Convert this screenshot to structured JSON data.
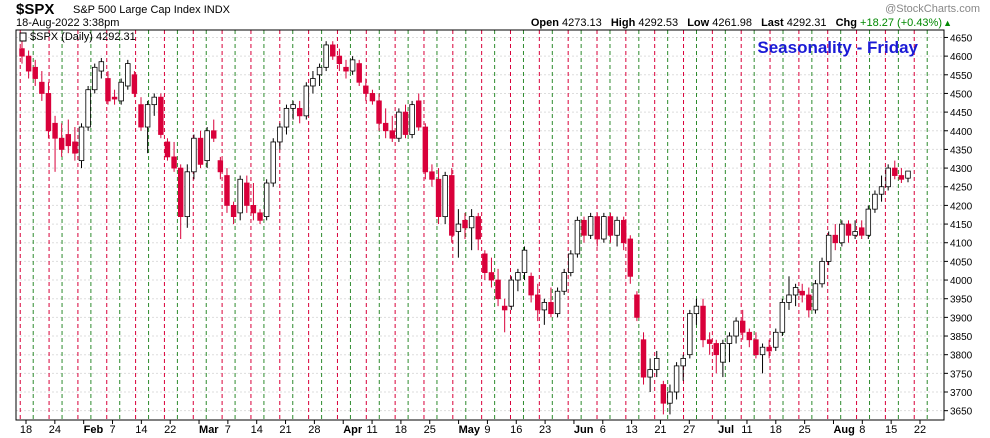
{
  "header": {
    "symbol": "$SPX",
    "name": "S&P 500 Large Cap Index",
    "exchange": "INDX",
    "datetime": "18-Aug-2022 3:38pm",
    "open_label": "Open",
    "open": "4273.13",
    "high_label": "High",
    "high": "4292.53",
    "low_label": "Low",
    "low": "4261.98",
    "last_label": "Last",
    "last": "4292.31",
    "chg_label": "Chg",
    "chg": "+18.27 (+0.43%)",
    "watermark": "@StockCharts.com",
    "up_arrow_icon": "triangle-up-icon"
  },
  "chart_data": {
    "type": "candlestick",
    "series_label": "$SPX (Daily) 4292.31",
    "annotation": "Seasonality - Friday",
    "annotation_color": "#1a1ad6",
    "ylim": [
      3625,
      4670
    ],
    "y_ticks": [
      3650,
      3700,
      3750,
      3800,
      3850,
      3900,
      3950,
      4000,
      4050,
      4100,
      4150,
      4200,
      4250,
      4300,
      4350,
      4400,
      4450,
      4500,
      4550,
      4600,
      4650
    ],
    "x_tick_labels": [
      "18",
      "24",
      "Feb",
      "7",
      "14",
      "22",
      "Mar",
      "7",
      "14",
      "21",
      "28",
      "Apr",
      "11",
      "18",
      "25",
      "May",
      "9",
      "16",
      "23",
      "Jun",
      "6",
      "13",
      "21",
      "27",
      "Jul",
      "11",
      "18",
      "25",
      "Aug",
      "8",
      "15",
      "22"
    ],
    "month_labels": [
      "Feb",
      "Mar",
      "Apr",
      "May",
      "Jun",
      "Jul",
      "Aug"
    ],
    "up_color": "#ffffff",
    "down_color": "#d9003a",
    "weekly_line_colors": {
      "red": "#d9003a",
      "green": "#2e8b2e"
    },
    "grid": true,
    "candles": [
      {
        "o": 4620,
        "h": 4650,
        "l": 4580,
        "c": 4600
      },
      {
        "o": 4600,
        "h": 4615,
        "l": 4540,
        "c": 4560
      },
      {
        "o": 4570,
        "h": 4590,
        "l": 4520,
        "c": 4540
      },
      {
        "o": 4530,
        "h": 4560,
        "l": 4480,
        "c": 4500
      },
      {
        "o": 4500,
        "h": 4530,
        "l": 4380,
        "c": 4400
      },
      {
        "o": 4420,
        "h": 4440,
        "l": 4290,
        "c": 4380
      },
      {
        "o": 4380,
        "h": 4420,
        "l": 4330,
        "c": 4350
      },
      {
        "o": 4390,
        "h": 4430,
        "l": 4340,
        "c": 4360
      },
      {
        "o": 4370,
        "h": 4410,
        "l": 4320,
        "c": 4340
      },
      {
        "o": 4320,
        "h": 4420,
        "l": 4300,
        "c": 4410
      },
      {
        "o": 4410,
        "h": 4520,
        "l": 4400,
        "c": 4510
      },
      {
        "o": 4510,
        "h": 4580,
        "l": 4500,
        "c": 4570
      },
      {
        "o": 4560,
        "h": 4595,
        "l": 4540,
        "c": 4585
      },
      {
        "o": 4540,
        "h": 4560,
        "l": 4470,
        "c": 4480
      },
      {
        "o": 4490,
        "h": 4510,
        "l": 4470,
        "c": 4485
      },
      {
        "o": 4480,
        "h": 4540,
        "l": 4470,
        "c": 4530
      },
      {
        "o": 4520,
        "h": 4590,
        "l": 4510,
        "c": 4580
      },
      {
        "o": 4550,
        "h": 4560,
        "l": 4490,
        "c": 4500
      },
      {
        "o": 4470,
        "h": 4490,
        "l": 4400,
        "c": 4410
      },
      {
        "o": 4410,
        "h": 4480,
        "l": 4340,
        "c": 4470
      },
      {
        "o": 4470,
        "h": 4500,
        "l": 4440,
        "c": 4490
      },
      {
        "o": 4490,
        "h": 4500,
        "l": 4380,
        "c": 4390
      },
      {
        "o": 4370,
        "h": 4380,
        "l": 4320,
        "c": 4330
      },
      {
        "o": 4330,
        "h": 4370,
        "l": 4290,
        "c": 4300
      },
      {
        "o": 4300,
        "h": 4310,
        "l": 4110,
        "c": 4170
      },
      {
        "o": 4170,
        "h": 4310,
        "l": 4140,
        "c": 4290
      },
      {
        "o": 4290,
        "h": 4390,
        "l": 4270,
        "c": 4380
      },
      {
        "o": 4380,
        "h": 4400,
        "l": 4300,
        "c": 4310
      },
      {
        "o": 4320,
        "h": 4410,
        "l": 4300,
        "c": 4400
      },
      {
        "o": 4400,
        "h": 4430,
        "l": 4370,
        "c": 4380
      },
      {
        "o": 4320,
        "h": 4330,
        "l": 4270,
        "c": 4290
      },
      {
        "o": 4280,
        "h": 4300,
        "l": 4180,
        "c": 4200
      },
      {
        "o": 4200,
        "h": 4210,
        "l": 4150,
        "c": 4170
      },
      {
        "o": 4180,
        "h": 4280,
        "l": 4160,
        "c": 4270
      },
      {
        "o": 4260,
        "h": 4280,
        "l": 4180,
        "c": 4200
      },
      {
        "o": 4200,
        "h": 4260,
        "l": 4160,
        "c": 4180
      },
      {
        "o": 4180,
        "h": 4190,
        "l": 4150,
        "c": 4160
      },
      {
        "o": 4170,
        "h": 4270,
        "l": 4160,
        "c": 4260
      },
      {
        "o": 4260,
        "h": 4380,
        "l": 4250,
        "c": 4370
      },
      {
        "o": 4370,
        "h": 4420,
        "l": 4350,
        "c": 4410
      },
      {
        "o": 4410,
        "h": 4470,
        "l": 4390,
        "c": 4460
      },
      {
        "o": 4460,
        "h": 4480,
        "l": 4430,
        "c": 4470
      },
      {
        "o": 4460,
        "h": 4480,
        "l": 4420,
        "c": 4440
      },
      {
        "o": 4440,
        "h": 4530,
        "l": 4430,
        "c": 4520
      },
      {
        "o": 4520,
        "h": 4560,
        "l": 4500,
        "c": 4540
      },
      {
        "o": 4550,
        "h": 4580,
        "l": 4520,
        "c": 4570
      },
      {
        "o": 4570,
        "h": 4640,
        "l": 4560,
        "c": 4630
      },
      {
        "o": 4630,
        "h": 4640,
        "l": 4590,
        "c": 4600
      },
      {
        "o": 4600,
        "h": 4620,
        "l": 4560,
        "c": 4580
      },
      {
        "o": 4570,
        "h": 4590,
        "l": 4540,
        "c": 4560
      },
      {
        "o": 4560,
        "h": 4600,
        "l": 4550,
        "c": 4590
      },
      {
        "o": 4580,
        "h": 4590,
        "l": 4520,
        "c": 4530
      },
      {
        "o": 4520,
        "h": 4540,
        "l": 4480,
        "c": 4500
      },
      {
        "o": 4500,
        "h": 4510,
        "l": 4470,
        "c": 4480
      },
      {
        "o": 4480,
        "h": 4500,
        "l": 4400,
        "c": 4420
      },
      {
        "o": 4420,
        "h": 4460,
        "l": 4380,
        "c": 4400
      },
      {
        "o": 4400,
        "h": 4440,
        "l": 4370,
        "c": 4380
      },
      {
        "o": 4380,
        "h": 4460,
        "l": 4370,
        "c": 4450
      },
      {
        "o": 4450,
        "h": 4470,
        "l": 4380,
        "c": 4390
      },
      {
        "o": 4390,
        "h": 4480,
        "l": 4380,
        "c": 4470
      },
      {
        "o": 4480,
        "h": 4500,
        "l": 4400,
        "c": 4410
      },
      {
        "o": 4410,
        "h": 4420,
        "l": 4270,
        "c": 4290
      },
      {
        "o": 4290,
        "h": 4310,
        "l": 4250,
        "c": 4270
      },
      {
        "o": 4270,
        "h": 4300,
        "l": 4150,
        "c": 4170
      },
      {
        "o": 4170,
        "h": 4290,
        "l": 4150,
        "c": 4280
      },
      {
        "o": 4280,
        "h": 4300,
        "l": 4100,
        "c": 4120
      },
      {
        "o": 4130,
        "h": 4190,
        "l": 4060,
        "c": 4150
      },
      {
        "o": 4160,
        "h": 4180,
        "l": 4110,
        "c": 4140
      },
      {
        "o": 4140,
        "h": 4190,
        "l": 4080,
        "c": 4170
      },
      {
        "o": 4170,
        "h": 4180,
        "l": 4080,
        "c": 4110
      },
      {
        "o": 4070,
        "h": 4080,
        "l": 4000,
        "c": 4020
      },
      {
        "o": 4020,
        "h": 4060,
        "l": 3980,
        "c": 4000
      },
      {
        "o": 4000,
        "h": 4030,
        "l": 3930,
        "c": 3950
      },
      {
        "o": 3930,
        "h": 3950,
        "l": 3860,
        "c": 3920
      },
      {
        "o": 3930,
        "h": 4010,
        "l": 3920,
        "c": 4000
      },
      {
        "o": 4000,
        "h": 4030,
        "l": 3970,
        "c": 4020
      },
      {
        "o": 4020,
        "h": 4090,
        "l": 4000,
        "c": 4080
      },
      {
        "o": 4010,
        "h": 4020,
        "l": 3940,
        "c": 3960
      },
      {
        "o": 3960,
        "h": 3990,
        "l": 3890,
        "c": 3920
      },
      {
        "o": 3920,
        "h": 3950,
        "l": 3880,
        "c": 3940
      },
      {
        "o": 3940,
        "h": 3980,
        "l": 3900,
        "c": 3910
      },
      {
        "o": 3910,
        "h": 3980,
        "l": 3900,
        "c": 3970
      },
      {
        "o": 3970,
        "h": 4030,
        "l": 3960,
        "c": 4020
      },
      {
        "o": 4020,
        "h": 4080,
        "l": 4010,
        "c": 4070
      },
      {
        "o": 4070,
        "h": 4170,
        "l": 4060,
        "c": 4160
      },
      {
        "o": 4160,
        "h": 4170,
        "l": 4100,
        "c": 4120
      },
      {
        "o": 4120,
        "h": 4180,
        "l": 4110,
        "c": 4170
      },
      {
        "o": 4170,
        "h": 4180,
        "l": 4090,
        "c": 4110
      },
      {
        "o": 4110,
        "h": 4180,
        "l": 4100,
        "c": 4170
      },
      {
        "o": 4170,
        "h": 4180,
        "l": 4100,
        "c": 4120
      },
      {
        "o": 4120,
        "h": 4170,
        "l": 4090,
        "c": 4160
      },
      {
        "o": 4160,
        "h": 4170,
        "l": 4080,
        "c": 4100
      },
      {
        "o": 4110,
        "h": 4120,
        "l": 3990,
        "c": 4010
      },
      {
        "o": 3960,
        "h": 3970,
        "l": 3890,
        "c": 3900
      },
      {
        "o": 3840,
        "h": 3860,
        "l": 3720,
        "c": 3740
      },
      {
        "o": 3740,
        "h": 3790,
        "l": 3700,
        "c": 3760
      },
      {
        "o": 3760,
        "h": 3810,
        "l": 3740,
        "c": 3790
      },
      {
        "o": 3720,
        "h": 3730,
        "l": 3640,
        "c": 3670
      },
      {
        "o": 3670,
        "h": 3720,
        "l": 3640,
        "c": 3700
      },
      {
        "o": 3700,
        "h": 3780,
        "l": 3680,
        "c": 3770
      },
      {
        "o": 3770,
        "h": 3800,
        "l": 3730,
        "c": 3790
      },
      {
        "o": 3800,
        "h": 3920,
        "l": 3790,
        "c": 3910
      },
      {
        "o": 3910,
        "h": 3950,
        "l": 3880,
        "c": 3930
      },
      {
        "o": 3930,
        "h": 3950,
        "l": 3820,
        "c": 3840
      },
      {
        "o": 3840,
        "h": 3860,
        "l": 3800,
        "c": 3830
      },
      {
        "o": 3830,
        "h": 3840,
        "l": 3750,
        "c": 3800
      },
      {
        "o": 3780,
        "h": 3840,
        "l": 3740,
        "c": 3830
      },
      {
        "o": 3830,
        "h": 3860,
        "l": 3780,
        "c": 3850
      },
      {
        "o": 3850,
        "h": 3900,
        "l": 3830,
        "c": 3890
      },
      {
        "o": 3890,
        "h": 3920,
        "l": 3840,
        "c": 3860
      },
      {
        "o": 3860,
        "h": 3870,
        "l": 3820,
        "c": 3840
      },
      {
        "o": 3840,
        "h": 3860,
        "l": 3790,
        "c": 3800
      },
      {
        "o": 3800,
        "h": 3830,
        "l": 3750,
        "c": 3820
      },
      {
        "o": 3820,
        "h": 3840,
        "l": 3790,
        "c": 3810
      },
      {
        "o": 3820,
        "h": 3870,
        "l": 3810,
        "c": 3860
      },
      {
        "o": 3860,
        "h": 3950,
        "l": 3850,
        "c": 3940
      },
      {
        "o": 3940,
        "h": 4010,
        "l": 3920,
        "c": 3960
      },
      {
        "o": 3960,
        "h": 3990,
        "l": 3930,
        "c": 3980
      },
      {
        "o": 3970,
        "h": 3990,
        "l": 3940,
        "c": 3960
      },
      {
        "o": 3960,
        "h": 3980,
        "l": 3900,
        "c": 3920
      },
      {
        "o": 3920,
        "h": 4000,
        "l": 3910,
        "c": 3990
      },
      {
        "o": 3990,
        "h": 4060,
        "l": 3980,
        "c": 4050
      },
      {
        "o": 4050,
        "h": 4130,
        "l": 4040,
        "c": 4120
      },
      {
        "o": 4120,
        "h": 4150,
        "l": 4080,
        "c": 4100
      },
      {
        "o": 4100,
        "h": 4160,
        "l": 4090,
        "c": 4150
      },
      {
        "o": 4150,
        "h": 4160,
        "l": 4100,
        "c": 4120
      },
      {
        "o": 4120,
        "h": 4160,
        "l": 4110,
        "c": 4130
      },
      {
        "o": 4140,
        "h": 4160,
        "l": 4110,
        "c": 4120
      },
      {
        "o": 4120,
        "h": 4200,
        "l": 4110,
        "c": 4190
      },
      {
        "o": 4190,
        "h": 4240,
        "l": 4180,
        "c": 4230
      },
      {
        "o": 4230,
        "h": 4280,
        "l": 4210,
        "c": 4250
      },
      {
        "o": 4250,
        "h": 4310,
        "l": 4240,
        "c": 4300
      },
      {
        "o": 4300,
        "h": 4320,
        "l": 4270,
        "c": 4280
      },
      {
        "o": 4280,
        "h": 4300,
        "l": 4260,
        "c": 4270
      },
      {
        "o": 4273,
        "h": 4292,
        "l": 4262,
        "c": 4292
      }
    ]
  }
}
